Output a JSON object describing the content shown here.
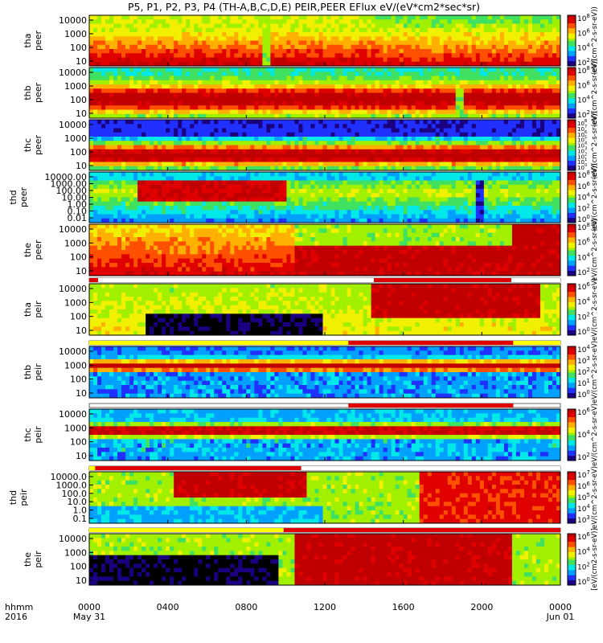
{
  "chart_data": {
    "type": "heatmap",
    "title": "P5, P1, P2, P3, P4 (TH-A,B,C,D,E) PEIR,PEER EFlux eV/(eV*cm2*sec*sr)",
    "x_axis": {
      "row_label": "hhmm",
      "year_label": "2016",
      "range_hours": [
        0,
        24
      ],
      "ticks": [
        {
          "hour": 0,
          "label": "0000",
          "date": "May 31"
        },
        {
          "hour": 4,
          "label": "0400",
          "date": ""
        },
        {
          "hour": 8,
          "label": "0800",
          "date": ""
        },
        {
          "hour": 12,
          "label": "1200",
          "date": ""
        },
        {
          "hour": 16,
          "label": "1600",
          "date": ""
        },
        {
          "hour": 20,
          "label": "2000",
          "date": ""
        },
        {
          "hour": 24,
          "label": "0000",
          "date": "Jun 01"
        }
      ]
    },
    "panels": [
      {
        "probe": "tha",
        "species": "peer",
        "ylabel": "tha\npeer",
        "yticks": [
          "10",
          "100",
          "1000",
          "10000"
        ],
        "cbar_ticks": [
          "10^2",
          "10^4",
          "10^6",
          "10^8"
        ],
        "cbar_label": "(eV/(cm^2-s-sr-eV))"
      },
      {
        "probe": "thb",
        "species": "peer",
        "ylabel": "thb\npeer",
        "yticks": [
          "10",
          "100",
          "1000",
          "10000"
        ],
        "cbar_ticks": [
          "10^2",
          "10^4",
          "10^6",
          "10^8"
        ],
        "cbar_label": "(eV/(cm^2-s-sr-eV))"
      },
      {
        "probe": "thc",
        "species": "peer",
        "ylabel": "thc\npeer",
        "yticks": [
          "10",
          "100",
          "1000",
          "10000"
        ],
        "cbar_ticks": [
          "10^0",
          "10^1",
          "10^2",
          "10^3",
          "10^4",
          "10^5",
          "10^6",
          "10^7",
          "10^8"
        ],
        "cbar_label": "(eV/(cm^2-s-sr-eV))"
      },
      {
        "probe": "thd",
        "species": "peer",
        "ylabel": "thd\npeer",
        "yticks": [
          "0.01",
          "0.10",
          "1.00",
          "10.00",
          "100.00",
          "1000.00",
          "10000.00"
        ],
        "cbar_ticks": [
          "10^0",
          "10^2",
          "10^4",
          "10^6",
          "10^8"
        ],
        "cbar_label": "(eV/(cm^2-s-sr-eV))"
      },
      {
        "probe": "the",
        "species": "peer",
        "ylabel": "the\npeer",
        "yticks": [
          "10",
          "100",
          "1000",
          "10000"
        ],
        "cbar_ticks": [
          "10^2",
          "10^4",
          "10^6",
          "10^8"
        ],
        "cbar_label": "eV/(cm^2-s-sr-eV)"
      },
      {
        "probe": "tha",
        "species": "peir",
        "ylabel": "tha\npeir",
        "yticks": [
          "10",
          "100",
          "1000",
          "10000"
        ],
        "cbar_ticks": [
          "10^0",
          "10^2",
          "10^4",
          "10^6"
        ],
        "cbar_label": "eV/(cm^2-s-sr-eV)"
      },
      {
        "probe": "thb",
        "species": "peir",
        "ylabel": "thb\npeir",
        "yticks": [
          "10",
          "100",
          "1000",
          "10000"
        ],
        "cbar_ticks": [
          "10^0",
          "10^1",
          "10^2",
          "10^3",
          "10^4"
        ],
        "cbar_label": "eV/(cm^2-s-sr-eV)"
      },
      {
        "probe": "thc",
        "species": "peir",
        "ylabel": "thc\npeir",
        "yticks": [
          "10",
          "100",
          "1000",
          "10000"
        ],
        "cbar_ticks": [
          "10^2",
          "10^4",
          "10^6"
        ],
        "cbar_label": "eV/(cm^2-s-sr-eV)"
      },
      {
        "probe": "thd",
        "species": "peir",
        "ylabel": "thd\npeir",
        "yticks": [
          "0.1",
          "1.0",
          "10.0",
          "100.0",
          "1000.0",
          "10000.0"
        ],
        "cbar_ticks": [
          "10^3",
          "10^4",
          "10^5",
          "10^6",
          "10^7"
        ],
        "cbar_label": "eV/(cm^2-s-sr-eV)"
      },
      {
        "probe": "the",
        "species": "peir",
        "ylabel": "the\npeir",
        "yticks": [
          "10",
          "100",
          "1000",
          "10000"
        ],
        "cbar_ticks": [
          "10^0",
          "10^2",
          "10^4",
          "10^6"
        ],
        "cbar_label": "[eV/(cm2-s-sr-eV)]"
      }
    ],
    "mode_bars": [
      {
        "after_panel": 4,
        "segments_hours": [
          [
            0.0,
            0.45
          ],
          [
            0.45,
            14.5
          ],
          [
            14.5,
            21.5
          ],
          [
            21.5,
            24.0
          ]
        ],
        "colors": [
          "red",
          "white",
          "red",
          "white"
        ]
      },
      {
        "after_panel": 5,
        "segments_hours": [
          [
            0.0,
            13.2
          ],
          [
            13.2,
            21.6
          ],
          [
            21.6,
            24.0
          ]
        ],
        "colors": [
          "yellow",
          "red",
          "yellow"
        ]
      },
      {
        "after_panel": 6,
        "segments_hours": [
          [
            13.2,
            21.6
          ]
        ],
        "colors": [
          "red"
        ]
      },
      {
        "after_panel": 7,
        "segments_hours": [
          [
            0.0,
            0.3
          ],
          [
            0.3,
            10.8
          ],
          [
            10.8,
            24.0
          ]
        ],
        "colors": [
          "yellow",
          "red",
          "white"
        ]
      },
      {
        "after_panel": 8,
        "segments_hours": [
          [
            0.0,
            9.9
          ],
          [
            9.9,
            24.0
          ]
        ],
        "colors": [
          "yellow",
          "red"
        ]
      }
    ],
    "colormap": [
      "#1a0080",
      "#2030ff",
      "#00a0ff",
      "#00e8e8",
      "#40e060",
      "#a0f000",
      "#f0f000",
      "#ffb000",
      "#ff5000",
      "#e00000",
      "#c00000"
    ]
  }
}
